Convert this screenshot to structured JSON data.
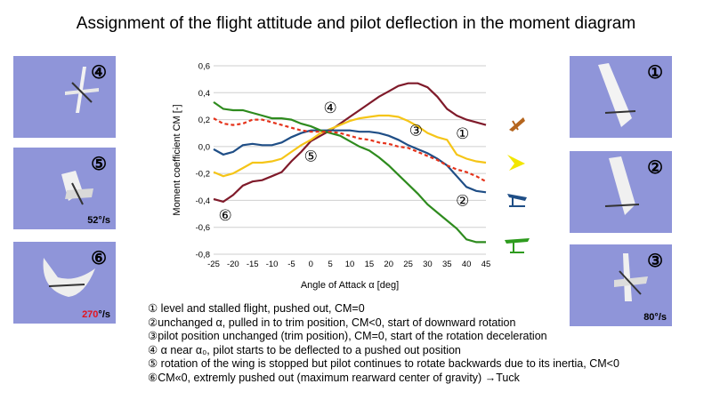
{
  "title": "Assignment of the flight attitude and pilot deflection in the moment diagram",
  "photos": {
    "p4": {
      "num": "④"
    },
    "p5": {
      "num": "⑤",
      "rate": "52°/s"
    },
    "p6": {
      "num": "⑥",
      "rate_value": "270",
      "rate_unit": "°/s"
    },
    "p1": {
      "num": "①"
    },
    "p2": {
      "num": "②"
    },
    "p3": {
      "num": "③",
      "rate": "80°/s"
    }
  },
  "chart_data": {
    "type": "line",
    "xlabel": "Angle of Attack α [deg]",
    "ylabel": "Moment coefficient CM [-]",
    "xlim": [
      -25,
      45
    ],
    "ylim": [
      -0.8,
      0.6
    ],
    "xticks": [
      "-25",
      "-20",
      "-15",
      "-10",
      "-5",
      "0",
      "5",
      "10",
      "15",
      "20",
      "25",
      "30",
      "35",
      "40",
      "45"
    ],
    "yticks": [
      "0,6",
      "0,4",
      "0,2",
      "0,0",
      "-0,2",
      "-0,4",
      "-0,6",
      "-0,8"
    ],
    "grid": "horizontal",
    "x": [
      -25,
      -22.5,
      -20,
      -17.5,
      -15,
      -12.5,
      -10,
      -7.5,
      -5,
      -2.5,
      0,
      2.5,
      5,
      7.5,
      10,
      12.5,
      15,
      17.5,
      20,
      22.5,
      25,
      27.5,
      30,
      32.5,
      35,
      37.5,
      40,
      42.5,
      45
    ],
    "series": [
      {
        "color": "#7f1a2a",
        "style": "solid",
        "values": [
          -0.39,
          -0.41,
          -0.36,
          -0.29,
          -0.26,
          -0.25,
          -0.22,
          -0.19,
          -0.11,
          -0.04,
          0.04,
          0.08,
          0.12,
          0.17,
          0.22,
          0.27,
          0.32,
          0.37,
          0.41,
          0.45,
          0.47,
          0.47,
          0.44,
          0.37,
          0.28,
          0.23,
          0.2,
          0.18,
          0.16
        ]
      },
      {
        "color": "#f5c518",
        "style": "solid",
        "values": [
          -0.19,
          -0.22,
          -0.2,
          -0.16,
          -0.12,
          -0.12,
          -0.11,
          -0.09,
          -0.04,
          0.01,
          0.05,
          0.1,
          0.13,
          0.16,
          0.19,
          0.21,
          0.22,
          0.23,
          0.23,
          0.22,
          0.19,
          0.15,
          0.1,
          0.07,
          0.05,
          -0.06,
          -0.09,
          -0.11,
          -0.12
        ]
      },
      {
        "color": "#1f4e86",
        "style": "solid",
        "values": [
          -0.02,
          -0.06,
          -0.04,
          0.01,
          0.02,
          0.01,
          0.01,
          0.03,
          0.07,
          0.1,
          0.12,
          0.12,
          0.12,
          0.12,
          0.12,
          0.11,
          0.11,
          0.1,
          0.08,
          0.05,
          0.01,
          -0.02,
          -0.05,
          -0.09,
          -0.14,
          -0.22,
          -0.3,
          -0.33,
          -0.34
        ]
      },
      {
        "color": "#2e8b1e",
        "style": "solid",
        "values": [
          0.33,
          0.28,
          0.27,
          0.27,
          0.25,
          0.23,
          0.21,
          0.21,
          0.2,
          0.17,
          0.15,
          0.12,
          0.1,
          0.08,
          0.04,
          0.0,
          -0.03,
          -0.08,
          -0.14,
          -0.21,
          -0.28,
          -0.35,
          -0.43,
          -0.49,
          -0.55,
          -0.61,
          -0.69,
          -0.71,
          -0.71
        ]
      },
      {
        "color": "#e5331b",
        "style": "dashed",
        "values": [
          0.21,
          0.17,
          0.16,
          0.17,
          0.2,
          0.2,
          0.18,
          0.16,
          0.14,
          0.12,
          0.11,
          0.11,
          0.11,
          0.1,
          0.08,
          0.06,
          0.05,
          0.03,
          0.02,
          0.0,
          -0.01,
          -0.04,
          -0.07,
          -0.1,
          -0.14,
          -0.17,
          -0.19,
          -0.22,
          -0.26
        ]
      }
    ],
    "annotations": [
      {
        "text": "④",
        "x": 5,
        "y": 0.25
      },
      {
        "text": "⑤",
        "x": 0,
        "y": -0.11
      },
      {
        "text": "⑥",
        "x": -22,
        "y": -0.55
      },
      {
        "text": "③",
        "x": 27,
        "y": 0.08
      },
      {
        "text": "①",
        "x": 39,
        "y": 0.06
      },
      {
        "text": "②",
        "x": 39,
        "y": -0.44
      }
    ]
  },
  "legend": [
    "① level and stalled flight, pushed out, CM=0",
    "②unchanged α, pulled in to trim position, CM<0, start of downward rotation",
    "③pilot position unchanged (trim position), CM=0, start of the rotation deceleration",
    "④ α near α₀, pilot starts to be deflected to a pushed out position",
    "⑤ rotation of the wing is stopped but pilot continues to rotate backwards due to its inertia, CM<0",
    "⑥CM«0, extremly pushed out (maximum rearward center of gravity) →Tuck"
  ],
  "glider_icons": [
    {
      "name": "brown-glider-icon",
      "color": "#b5651d"
    },
    {
      "name": "yellow-glider-icon",
      "color": "#f2e600"
    },
    {
      "name": "blue-glider-icon",
      "color": "#1f4e86"
    },
    {
      "name": "green-glider-icon",
      "color": "#2e9b1e"
    }
  ]
}
